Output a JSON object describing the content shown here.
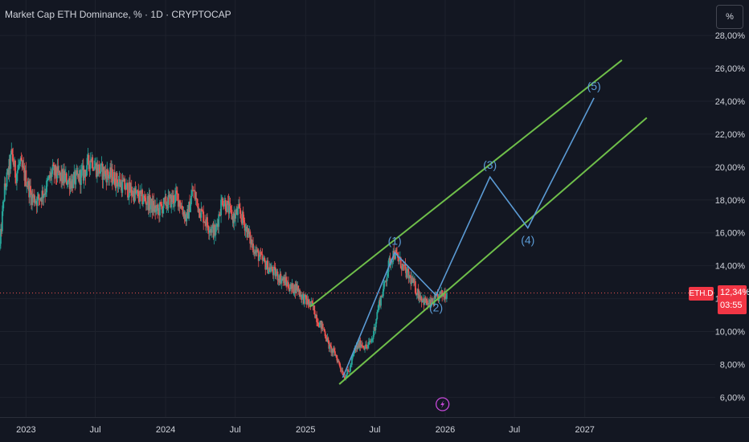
{
  "header": {
    "title": "Market Cap ETH Dominance, % · 1D · CRYPTOCAP"
  },
  "controls": {
    "percent_label": "%"
  },
  "price_tag": {
    "symbol": "ETH.D",
    "value": "12,34%",
    "countdown": "03:55"
  },
  "colors": {
    "background": "#131722",
    "grid": "#1e222d",
    "text": "#d1d4dc",
    "up": "#26a69a",
    "down": "#ef5350",
    "wave": "#5b9bd5",
    "channel": "#6fbf4a",
    "tag": "#f23645"
  },
  "icons": {
    "event_marker": "lightning-icon"
  },
  "chart_data": {
    "type": "candlestick",
    "title": "Market Cap ETH Dominance, % · 1D · CRYPTOCAP",
    "xlabel": "",
    "ylabel": "",
    "ylim": [
      4.8,
      28.2
    ],
    "xlim": [
      "2022-10-25",
      "2027-12-08"
    ],
    "grid": true,
    "y_ticks": [
      6,
      8,
      10,
      12,
      14,
      16,
      18,
      20,
      22,
      24,
      26,
      28
    ],
    "y_tick_labels": [
      "6,00%",
      "8,00%",
      "10,00%",
      "12,00%",
      "14,00%",
      "16,00%",
      "18,00%",
      "20,00%",
      "22,00%",
      "24,00%",
      "26,00%",
      "28,00%"
    ],
    "x_ticks": [
      {
        "date": "2023-01-01",
        "label": "2023"
      },
      {
        "date": "2023-07-01",
        "label": "Jul"
      },
      {
        "date": "2024-01-01",
        "label": "2024"
      },
      {
        "date": "2024-07-01",
        "label": "Jul"
      },
      {
        "date": "2025-01-01",
        "label": "2025"
      },
      {
        "date": "2025-07-01",
        "label": "Jul"
      },
      {
        "date": "2026-01-01",
        "label": "2026"
      },
      {
        "date": "2026-07-01",
        "label": "Jul"
      },
      {
        "date": "2027-01-01",
        "label": "2027"
      }
    ],
    "price_path": [
      [
        "2022-10-25",
        15.2
      ],
      [
        "2022-11-05",
        18.5
      ],
      [
        "2022-11-15",
        19.6
      ],
      [
        "2022-11-25",
        20.8
      ],
      [
        "2022-12-05",
        19.5
      ],
      [
        "2022-12-15",
        20.2
      ],
      [
        "2023-01-01",
        19.3
      ],
      [
        "2023-01-15",
        18.2
      ],
      [
        "2023-02-01",
        18.0
      ],
      [
        "2023-02-20",
        18.6
      ],
      [
        "2023-03-10",
        19.7
      ],
      [
        "2023-04-01",
        19.4
      ],
      [
        "2023-05-01",
        19.1
      ],
      [
        "2023-06-01",
        19.6
      ],
      [
        "2023-06-20",
        20.6
      ],
      [
        "2023-07-01",
        20.0
      ],
      [
        "2023-07-20",
        19.7
      ],
      [
        "2023-08-15",
        19.4
      ],
      [
        "2023-09-15",
        18.8
      ],
      [
        "2023-10-15",
        18.3
      ],
      [
        "2023-11-15",
        17.9
      ],
      [
        "2023-12-10",
        17.3
      ],
      [
        "2024-01-01",
        17.8
      ],
      [
        "2024-02-01",
        18.2
      ],
      [
        "2024-02-25",
        16.8
      ],
      [
        "2024-03-12",
        18.6
      ],
      [
        "2024-03-28",
        17.5
      ],
      [
        "2024-04-20",
        16.5
      ],
      [
        "2024-05-10",
        16.0
      ],
      [
        "2024-05-28",
        18.1
      ],
      [
        "2024-06-10",
        17.6
      ],
      [
        "2024-06-25",
        16.9
      ],
      [
        "2024-07-10",
        17.3
      ],
      [
        "2024-07-25",
        16.6
      ],
      [
        "2024-08-10",
        15.5
      ],
      [
        "2024-08-25",
        14.8
      ],
      [
        "2024-09-10",
        14.3
      ],
      [
        "2024-09-25",
        13.9
      ],
      [
        "2024-10-10",
        13.6
      ],
      [
        "2024-10-25",
        13.3
      ],
      [
        "2024-11-10",
        13.0
      ],
      [
        "2024-11-25",
        12.6
      ],
      [
        "2024-12-10",
        12.7
      ],
      [
        "2024-12-20",
        12.2
      ],
      [
        "2025-01-05",
        11.8
      ],
      [
        "2025-01-20",
        11.5
      ],
      [
        "2025-02-03",
        10.6
      ],
      [
        "2025-02-18",
        10.1
      ],
      [
        "2025-03-05",
        9.0
      ],
      [
        "2025-03-20",
        8.6
      ],
      [
        "2025-04-01",
        7.9
      ],
      [
        "2025-04-12",
        7.3
      ],
      [
        "2025-04-25",
        7.6
      ],
      [
        "2025-05-10",
        8.9
      ],
      [
        "2025-05-25",
        9.3
      ],
      [
        "2025-06-10",
        9.0
      ],
      [
        "2025-06-25",
        9.6
      ],
      [
        "2025-07-10",
        11.5
      ],
      [
        "2025-07-25",
        12.7
      ],
      [
        "2025-08-08",
        14.2
      ],
      [
        "2025-08-20",
        14.8
      ],
      [
        "2025-09-05",
        14.2
      ],
      [
        "2025-09-20",
        13.6
      ],
      [
        "2025-10-05",
        13.1
      ],
      [
        "2025-10-20",
        12.4
      ],
      [
        "2025-11-05",
        11.9
      ],
      [
        "2025-11-20",
        11.6
      ],
      [
        "2025-12-05",
        11.9
      ],
      [
        "2025-12-20",
        12.2
      ],
      [
        "2026-01-05",
        12.34
      ]
    ],
    "wave": {
      "points": [
        {
          "date": "2025-04-08",
          "value": 7.2,
          "label": ""
        },
        {
          "date": "2025-08-22",
          "value": 14.8,
          "label": "(1)"
        },
        {
          "date": "2025-12-08",
          "value": 12.2,
          "label": "(2)"
        },
        {
          "date": "2026-04-28",
          "value": 19.4,
          "label": "(3)"
        },
        {
          "date": "2026-08-05",
          "value": 16.3,
          "label": "(4)"
        },
        {
          "date": "2027-01-25",
          "value": 24.2,
          "label": "(5)"
        }
      ],
      "label_positions": [
        "",
        "above",
        "below",
        "above",
        "below",
        "above"
      ]
    },
    "channel": [
      {
        "from": [
          "2025-01-12",
          11.5
        ],
        "to": [
          "2027-04-08",
          26.5
        ]
      },
      {
        "from": [
          "2025-03-30",
          6.8
        ],
        "to": [
          "2027-06-12",
          23.0
        ]
      }
    ],
    "last_price": 12.34,
    "event_marker_date": "2025-12-25"
  }
}
